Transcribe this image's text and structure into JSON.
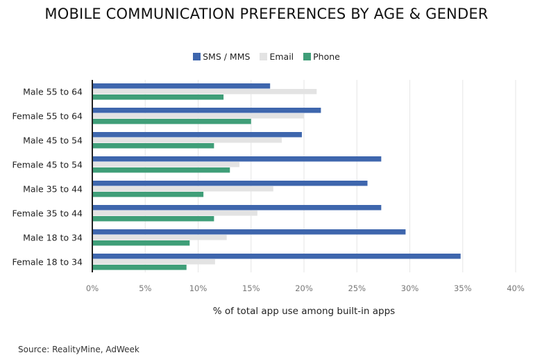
{
  "chart_data": {
    "type": "bar",
    "orientation": "horizontal",
    "title": "MOBILE COMMUNICATION PREFERENCES BY AGE & GENDER",
    "xlabel": "% of total app use among built-in apps",
    "ylabel": "",
    "xlim": [
      0,
      40
    ],
    "xticks": [
      "0%",
      "5%",
      "10%",
      "15%",
      "20%",
      "25%",
      "30%",
      "35%",
      "40%"
    ],
    "grid": true,
    "legend_position": "top",
    "categories": [
      "Male 55 to 64",
      "Female 55 to 64",
      "Male 45 to 54",
      "Female 45 to 54",
      "Male 35 to 44",
      "Female 35 to 44",
      "Male 18 to 34",
      "Female 18 to 34"
    ],
    "series": [
      {
        "name": "SMS / MMS",
        "color": "#3e66ad",
        "values": [
          16.8,
          21.6,
          19.8,
          27.3,
          26.0,
          27.3,
          29.6,
          34.8
        ]
      },
      {
        "name": "Email",
        "color": "#e3e3e3",
        "values": [
          21.2,
          20.0,
          17.9,
          13.9,
          17.1,
          15.6,
          12.7,
          11.6
        ]
      },
      {
        "name": "Phone",
        "color": "#3f9e78",
        "values": [
          12.4,
          15.0,
          11.5,
          13.0,
          10.5,
          11.5,
          9.2,
          8.9
        ]
      }
    ],
    "source": "Source: RealityMine, AdWeek"
  }
}
